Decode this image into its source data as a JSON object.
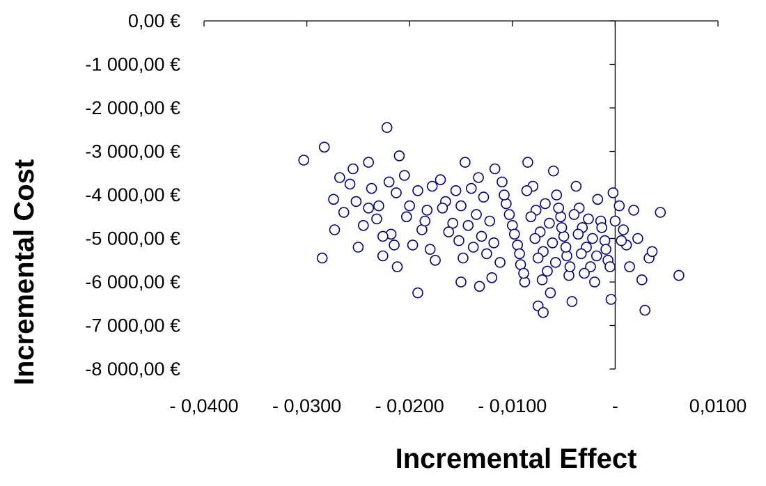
{
  "chart_data": {
    "type": "scatter",
    "title": "",
    "xlabel": "Incremental Effect",
    "ylabel": "Incremental Cost",
    "xlim": [
      -0.04,
      0.01
    ],
    "ylim": [
      -8000,
      0
    ],
    "x_ticks": [
      -0.04,
      -0.03,
      -0.02,
      -0.01,
      0,
      0.01
    ],
    "x_tick_labels": [
      "- 0,0400",
      "- 0,0300",
      "- 0,0200",
      "- 0,0100",
      "-",
      "0,0100"
    ],
    "y_ticks": [
      0,
      -1000,
      -2000,
      -3000,
      -4000,
      -5000,
      -6000,
      -7000,
      -8000
    ],
    "y_tick_labels": [
      "0,00 €",
      "-1 000,00 €",
      "-2 000,00 €",
      "-3 000,00 €",
      "-4 000,00 €",
      "-5 000,00 €",
      "-6 000,00 €",
      "-7 000,00 €",
      "-8 000,00 €"
    ],
    "grid": false,
    "legend": "none",
    "marker": "open-circle",
    "marker_color": "#000080",
    "series": [
      {
        "values": [
          [
            -0.0303,
            -3200
          ],
          [
            -0.0283,
            -2900
          ],
          [
            -0.0222,
            -2450
          ],
          [
            -0.021,
            -3100
          ],
          [
            -0.0285,
            -5450
          ],
          [
            -0.0273,
            -4800
          ],
          [
            -0.025,
            -5200
          ],
          [
            -0.0245,
            -4700
          ],
          [
            -0.0274,
            -4100
          ],
          [
            -0.0264,
            -4400
          ],
          [
            -0.0268,
            -3600
          ],
          [
            -0.0255,
            -3400
          ],
          [
            -0.0258,
            -3750
          ],
          [
            -0.0252,
            -4150
          ],
          [
            -0.024,
            -3250
          ],
          [
            -0.0237,
            -3850
          ],
          [
            -0.023,
            -4250
          ],
          [
            -0.022,
            -3700
          ],
          [
            -0.0213,
            -3950
          ],
          [
            -0.0205,
            -3550
          ],
          [
            -0.0203,
            -4500
          ],
          [
            -0.0218,
            -4900
          ],
          [
            -0.0226,
            -5400
          ],
          [
            -0.0212,
            -5650
          ],
          [
            -0.0197,
            -5150
          ],
          [
            -0.0188,
            -4800
          ],
          [
            -0.0183,
            -4350
          ],
          [
            -0.0178,
            -3800
          ],
          [
            -0.017,
            -3650
          ],
          [
            -0.0165,
            -4150
          ],
          [
            -0.0158,
            -4650
          ],
          [
            -0.0152,
            -5050
          ],
          [
            -0.0148,
            -5450
          ],
          [
            -0.0146,
            -3250
          ],
          [
            -0.014,
            -3850
          ],
          [
            -0.0135,
            -4450
          ],
          [
            -0.013,
            -4950
          ],
          [
            -0.0125,
            -5350
          ],
          [
            -0.012,
            -5900
          ],
          [
            -0.0117,
            -3400
          ],
          [
            -0.011,
            -3700
          ],
          [
            -0.0106,
            -4200
          ],
          [
            -0.01,
            -4700
          ],
          [
            -0.0095,
            -5150
          ],
          [
            -0.0092,
            -5600
          ],
          [
            -0.0088,
            -6000
          ],
          [
            -0.0085,
            -3250
          ],
          [
            -0.008,
            -3800
          ],
          [
            -0.0077,
            -4350
          ],
          [
            -0.0073,
            -4850
          ],
          [
            -0.007,
            -5300
          ],
          [
            -0.0066,
            -5750
          ],
          [
            -0.0063,
            -6250
          ],
          [
            -0.006,
            -3450
          ],
          [
            -0.0057,
            -4000
          ],
          [
            -0.0053,
            -4500
          ],
          [
            -0.005,
            -4950
          ],
          [
            -0.0047,
            -5400
          ],
          [
            -0.0045,
            -5850
          ],
          [
            -0.0042,
            -6450
          ],
          [
            -0.0038,
            -3800
          ],
          [
            -0.0035,
            -4300
          ],
          [
            -0.0032,
            -4750
          ],
          [
            -0.0028,
            -5200
          ],
          [
            -0.0024,
            -5650
          ],
          [
            -0.002,
            -6000
          ],
          [
            -0.0017,
            -4100
          ],
          [
            -0.0014,
            -4600
          ],
          [
            -0.001,
            -5050
          ],
          [
            -0.0007,
            -5500
          ],
          [
            -0.0004,
            -6400
          ],
          [
            -0.0002,
            -3950
          ],
          [
            0.0004,
            -4250
          ],
          [
            0.0008,
            -4800
          ],
          [
            0.0011,
            -5150
          ],
          [
            0.0014,
            -5650
          ],
          [
            0.0018,
            -4350
          ],
          [
            0.0022,
            -5000
          ],
          [
            0.0026,
            -5950
          ],
          [
            0.0029,
            -6650
          ],
          [
            0.0033,
            -5450
          ],
          [
            0.0036,
            -5300
          ],
          [
            0.0044,
            -4400
          ],
          [
            0.0062,
            -5850
          ],
          [
            -0.0192,
            -6250
          ],
          [
            -0.015,
            -6000
          ],
          [
            -0.0132,
            -6100
          ],
          [
            -0.0075,
            -6550
          ],
          [
            -0.007,
            -6700
          ],
          [
            -0.024,
            -4300
          ],
          [
            -0.0232,
            -4550
          ],
          [
            -0.0226,
            -4950
          ],
          [
            -0.0215,
            -5150
          ],
          [
            -0.02,
            -4250
          ],
          [
            -0.0192,
            -3900
          ],
          [
            -0.0185,
            -4600
          ],
          [
            -0.018,
            -5250
          ],
          [
            -0.0175,
            -5500
          ],
          [
            -0.0168,
            -4300
          ],
          [
            -0.0162,
            -4850
          ],
          [
            -0.0155,
            -3900
          ],
          [
            -0.015,
            -4250
          ],
          [
            -0.0143,
            -4700
          ],
          [
            -0.0138,
            -5200
          ],
          [
            -0.0133,
            -3600
          ],
          [
            -0.0128,
            -4050
          ],
          [
            -0.0122,
            -4600
          ],
          [
            -0.0118,
            -5100
          ],
          [
            -0.0112,
            -5550
          ],
          [
            -0.0108,
            -4000
          ],
          [
            -0.0103,
            -4450
          ],
          [
            -0.0098,
            -4900
          ],
          [
            -0.0093,
            -5350
          ],
          [
            -0.0089,
            -5800
          ],
          [
            -0.0086,
            -3900
          ],
          [
            -0.0082,
            -4500
          ],
          [
            -0.0078,
            -5000
          ],
          [
            -0.0075,
            -5450
          ],
          [
            -0.0071,
            -5950
          ],
          [
            -0.0068,
            -4200
          ],
          [
            -0.0064,
            -4650
          ],
          [
            -0.0061,
            -5100
          ],
          [
            -0.0058,
            -5550
          ],
          [
            -0.0055,
            -4300
          ],
          [
            -0.0052,
            -4750
          ],
          [
            -0.0048,
            -5200
          ],
          [
            -0.0044,
            -5650
          ],
          [
            -0.004,
            -4450
          ],
          [
            -0.0036,
            -4900
          ],
          [
            -0.0033,
            -5350
          ],
          [
            -0.003,
            -5800
          ],
          [
            -0.0026,
            -4550
          ],
          [
            -0.0022,
            -5000
          ],
          [
            -0.0018,
            -5400
          ],
          [
            -0.0013,
            -4750
          ],
          [
            -0.0009,
            -5250
          ],
          [
            -0.0005,
            -5650
          ],
          [
            0.0,
            -4600
          ],
          [
            0.0006,
            -5050
          ]
        ]
      }
    ]
  }
}
